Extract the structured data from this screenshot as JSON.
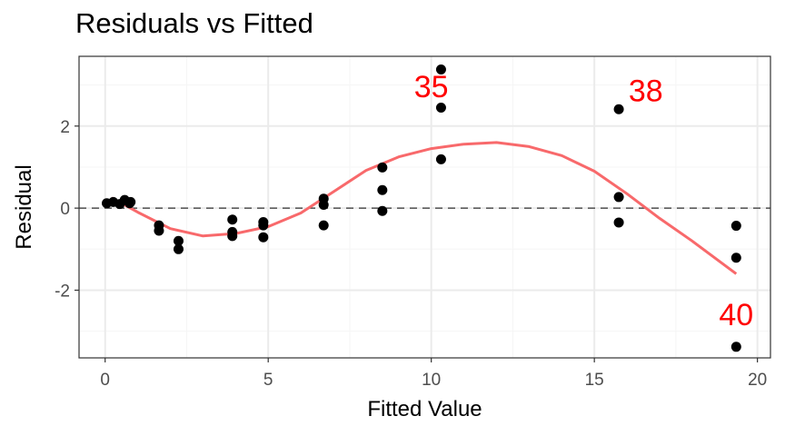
{
  "chart_data": {
    "type": "scatter",
    "title": "Residuals vs Fitted",
    "xlabel": "Fitted Value",
    "ylabel": "Residual",
    "xlim": [
      -0.8,
      20.4
    ],
    "ylim": [
      -3.65,
      3.7
    ],
    "x_ticks": [
      0,
      5,
      10,
      15,
      20
    ],
    "x_tick_labels": [
      "0",
      "5",
      "10",
      "15",
      "20"
    ],
    "y_ticks": [
      -2,
      0,
      2
    ],
    "y_tick_labels": [
      "-2",
      "0",
      "2"
    ],
    "grid": true,
    "reference_line": {
      "y": 0,
      "style": "dashed"
    },
    "points": [
      {
        "x": 0.05,
        "y": 0.12
      },
      {
        "x": 0.25,
        "y": 0.15
      },
      {
        "x": 0.45,
        "y": 0.1
      },
      {
        "x": 0.6,
        "y": 0.2
      },
      {
        "x": 0.75,
        "y": 0.12
      },
      {
        "x": 0.78,
        "y": 0.15
      },
      {
        "x": 1.65,
        "y": -0.42
      },
      {
        "x": 1.65,
        "y": -0.55
      },
      {
        "x": 2.25,
        "y": -0.8
      },
      {
        "x": 2.25,
        "y": -1.0
      },
      {
        "x": 3.9,
        "y": -0.28
      },
      {
        "x": 3.9,
        "y": -0.58
      },
      {
        "x": 3.9,
        "y": -0.68
      },
      {
        "x": 4.85,
        "y": -0.34
      },
      {
        "x": 4.85,
        "y": -0.42
      },
      {
        "x": 4.85,
        "y": -0.71
      },
      {
        "x": 6.7,
        "y": 0.23
      },
      {
        "x": 6.7,
        "y": 0.08
      },
      {
        "x": 6.7,
        "y": -0.42
      },
      {
        "x": 8.5,
        "y": 0.99
      },
      {
        "x": 8.5,
        "y": 0.44
      },
      {
        "x": 8.5,
        "y": -0.07
      },
      {
        "x": 10.3,
        "y": 3.38
      },
      {
        "x": 10.3,
        "y": 2.45
      },
      {
        "x": 10.3,
        "y": 1.19
      },
      {
        "x": 15.75,
        "y": 2.41
      },
      {
        "x": 15.75,
        "y": 0.27
      },
      {
        "x": 15.75,
        "y": -0.35
      },
      {
        "x": 19.35,
        "y": -0.43
      },
      {
        "x": 19.35,
        "y": -1.21
      },
      {
        "x": 19.35,
        "y": -3.38
      }
    ],
    "smooth_line": {
      "color": "#f8696b",
      "x": [
        0.2,
        1,
        2,
        3,
        4,
        5,
        6,
        7,
        8,
        9,
        10,
        11,
        12,
        13,
        14,
        15,
        16,
        17,
        18,
        19.35
      ],
      "y": [
        0.25,
        -0.1,
        -0.5,
        -0.68,
        -0.62,
        -0.45,
        -0.12,
        0.4,
        0.92,
        1.25,
        1.45,
        1.56,
        1.6,
        1.5,
        1.28,
        0.9,
        0.35,
        -0.25,
        -0.8,
        -1.6
      ]
    },
    "annotations": [
      {
        "text": "35",
        "x": 10.0,
        "y": 2.7,
        "color": "#ff0000",
        "anchor": "middle"
      },
      {
        "text": "38",
        "x": 16.05,
        "y": 2.6,
        "color": "#ff0000",
        "anchor": "start"
      },
      {
        "text": "40",
        "x": 19.35,
        "y": -2.85,
        "color": "#ff0000",
        "anchor": "middle"
      }
    ],
    "colors": {
      "points": "#000000",
      "panel_border": "#333333",
      "grid_major": "#ebebeb",
      "grid_minor": "#f5f5f5",
      "reference_line": "#333333"
    }
  }
}
